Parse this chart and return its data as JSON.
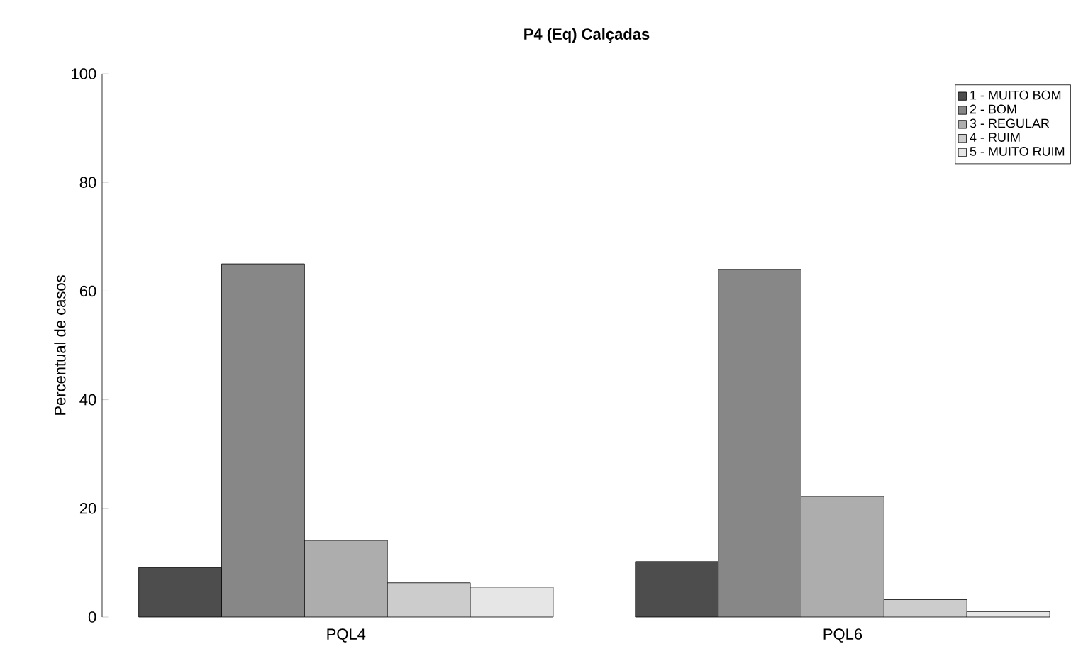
{
  "chart_data": {
    "type": "bar",
    "title": "P4 (Eq) Calçadas",
    "ylabel": "Percentual de casos",
    "categories": [
      "PQL4",
      "PQL6"
    ],
    "series": [
      {
        "name": "1 - MUITO BOM",
        "color": "#4d4d4d",
        "values": [
          9.1,
          10.2
        ]
      },
      {
        "name": "2 - BOM",
        "color": "#878787",
        "values": [
          65.0,
          64.0
        ]
      },
      {
        "name": "3 - REGULAR",
        "color": "#adadad",
        "values": [
          14.1,
          22.2
        ]
      },
      {
        "name": "4 - RUIM",
        "color": "#cccccc",
        "values": [
          6.3,
          3.2
        ]
      },
      {
        "name": "5 - MUITO RUIM",
        "color": "#e6e6e6",
        "values": [
          5.5,
          1.0
        ]
      }
    ],
    "ylim": [
      0,
      100
    ],
    "yticks": [
      0,
      20,
      40,
      60,
      80,
      100
    ],
    "legend": "top right"
  }
}
